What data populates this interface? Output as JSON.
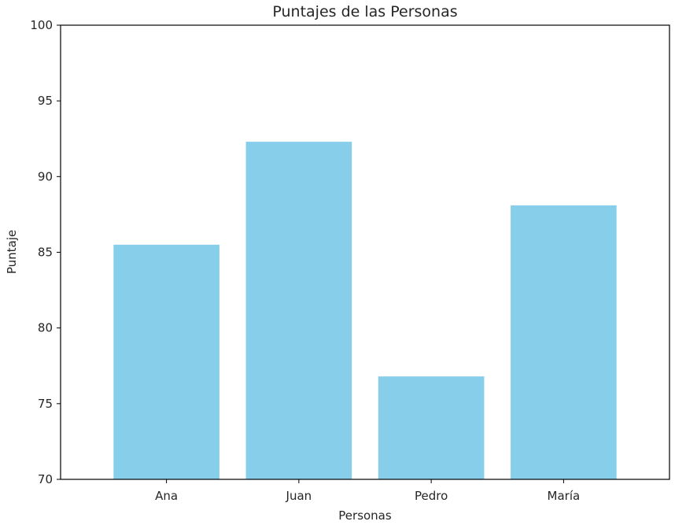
{
  "chart_data": {
    "type": "bar",
    "title": "Puntajes de las Personas",
    "xlabel": "Personas",
    "ylabel": "Puntaje",
    "categories": [
      "Ana",
      "Juan",
      "Pedro",
      "María"
    ],
    "values": [
      85.5,
      92.3,
      76.8,
      88.1
    ],
    "ylim": [
      70,
      100
    ],
    "yticks": [
      "70",
      "75",
      "80",
      "85",
      "90",
      "95",
      "100"
    ],
    "bar_color": "#87CEEB",
    "grid": false
  }
}
